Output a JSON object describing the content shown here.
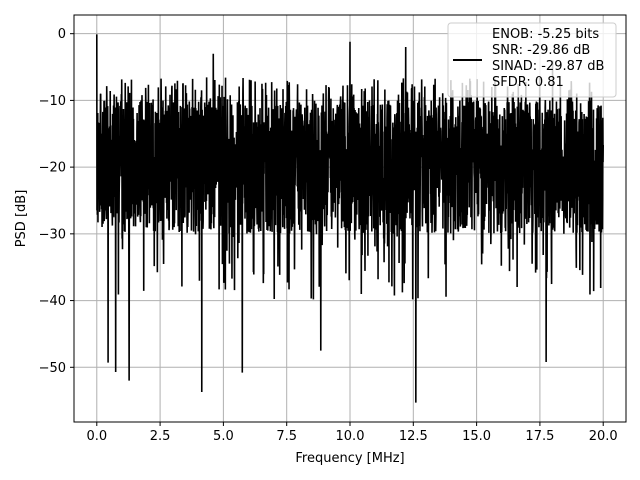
{
  "chart_data": {
    "type": "line",
    "title": "",
    "xlabel": "Frequency [MHz]",
    "ylabel": "PSD [dB]",
    "xlim": [
      -0.9,
      20.9
    ],
    "ylim": [
      -58.2,
      2.8
    ],
    "x_ticks": [
      0.0,
      2.5,
      5.0,
      7.5,
      10.0,
      12.5,
      15.0,
      17.5,
      20.0
    ],
    "x_tick_labels": [
      "0.0",
      "2.5",
      "5.0",
      "7.5",
      "10.0",
      "12.5",
      "15.0",
      "17.5",
      "20.0"
    ],
    "y_ticks": [
      0,
      -10,
      -20,
      -30,
      -40,
      -50
    ],
    "y_tick_labels": [
      "0",
      "−10",
      "−20",
      "−30",
      "−40",
      "−50"
    ],
    "grid": true,
    "legend_position": "top-right",
    "series": [
      {
        "name": "ENOB: -5.25 bits",
        "color": "#000000",
        "x_range": [
          0.0,
          20.0
        ],
        "y_max": -0.1,
        "y_min": -55.3,
        "band_upper_approx": -10.0,
        "band_lower_approx": -28.0,
        "peaks": [
          {
            "x": 0.0,
            "y": -0.1
          },
          {
            "x": 4.6,
            "y": -3.0
          },
          {
            "x": 10.0,
            "y": -1.2
          },
          {
            "x": 12.2,
            "y": -2.0
          },
          {
            "x": 18.0,
            "y": -4.0
          }
        ],
        "dips": [
          {
            "x": 0.45,
            "y": -49.3
          },
          {
            "x": 0.75,
            "y": -50.7
          },
          {
            "x": 1.28,
            "y": -52.0
          },
          {
            "x": 4.15,
            "y": -53.7
          },
          {
            "x": 5.75,
            "y": -50.8
          },
          {
            "x": 8.85,
            "y": -47.5
          },
          {
            "x": 12.6,
            "y": -55.3
          },
          {
            "x": 17.75,
            "y": -49.2
          }
        ]
      }
    ]
  },
  "legend": {
    "lines": [
      "ENOB: -5.25 bits",
      "SNR: -29.86 dB",
      "SINAD: -29.87 dB",
      "SFDR: 0.81"
    ]
  }
}
